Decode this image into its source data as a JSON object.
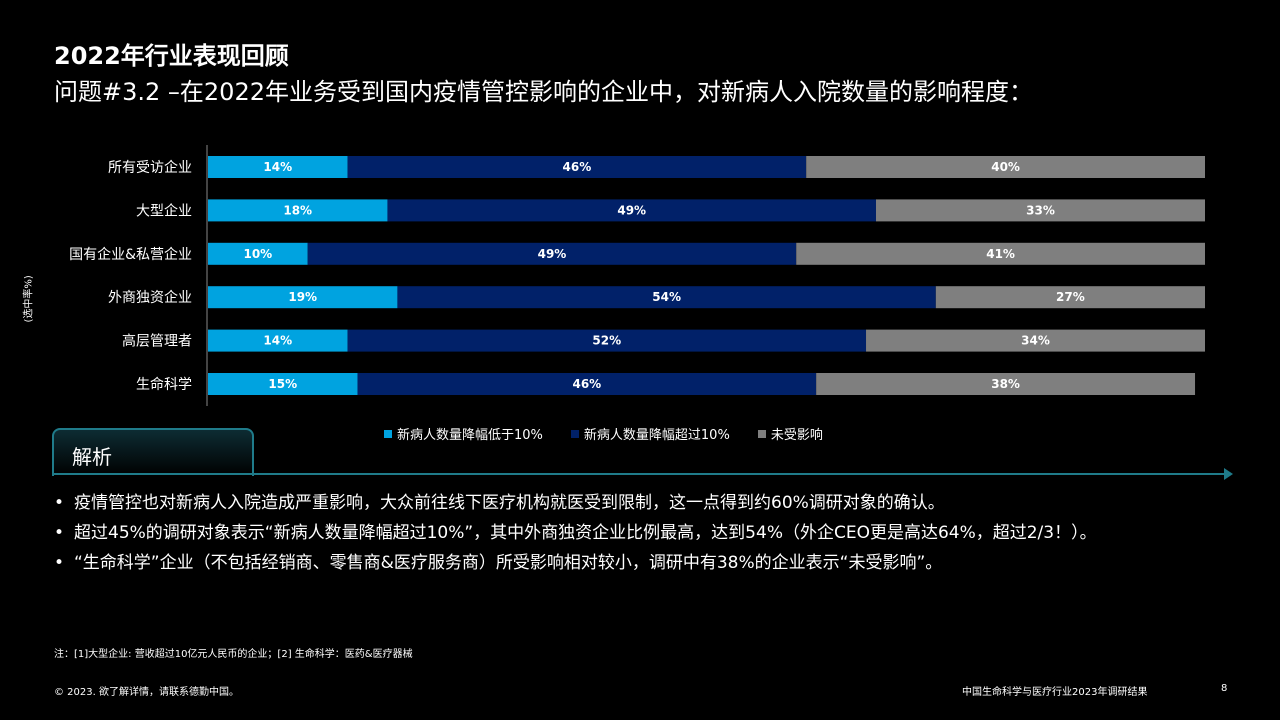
{
  "header": {
    "title": "2022年行业表现回顾",
    "subtitle": "问题#3.2 –在2022年业务受到国内疫情管控影响的企业中，对新病人入院数量的影响程度："
  },
  "y_axis_label": "(选中率%)",
  "chart_data": {
    "type": "bar",
    "orientation": "horizontal",
    "stacked": true,
    "categories": [
      "所有受访企业",
      "大型企业",
      "国有企业&私营企业",
      "外商独资企业",
      "高层管理者",
      "生命科学"
    ],
    "series": [
      {
        "name": "新病人数量降幅低于10%",
        "color": "#00a3e0",
        "values": [
          14,
          18,
          10,
          19,
          14,
          15
        ]
      },
      {
        "name": "新病人数量降幅超过10%",
        "color": "#012169",
        "values": [
          46,
          49,
          49,
          54,
          52,
          46
        ]
      },
      {
        "name": "未受影响",
        "color": "#7f7f7f",
        "values": [
          40,
          33,
          41,
          27,
          34,
          38
        ]
      }
    ],
    "xlim": [
      0,
      100
    ],
    "legend_position": "bottom",
    "grid": false
  },
  "analysis": {
    "heading": "解析",
    "bullets": [
      "疫情管控也对新病人入院造成严重影响，大众前往线下医疗机构就医受到限制，这一点得到约60%调研对象的确认。",
      "超过45%的调研对象表示“新病人数量降幅超过10%”，其中外商独资企业比例最高，达到54%（外企CEO更是高达64%，超过2/3！）。",
      "“生命科学”企业（不包括经销商、零售商&医疗服务商）所受影响相对较小，调研中有38%的企业表示“未受影响”。"
    ]
  },
  "footnote": "注：[1]大型企业: 营收超过10亿元人民币的企业；[2] 生命科学：医药&医疗器械",
  "footer": {
    "copyright": "© 2023. 欲了解详情，请联系德勤中国。",
    "report": "中国生命科学与医疗行业2023年调研结果",
    "page": "8"
  }
}
